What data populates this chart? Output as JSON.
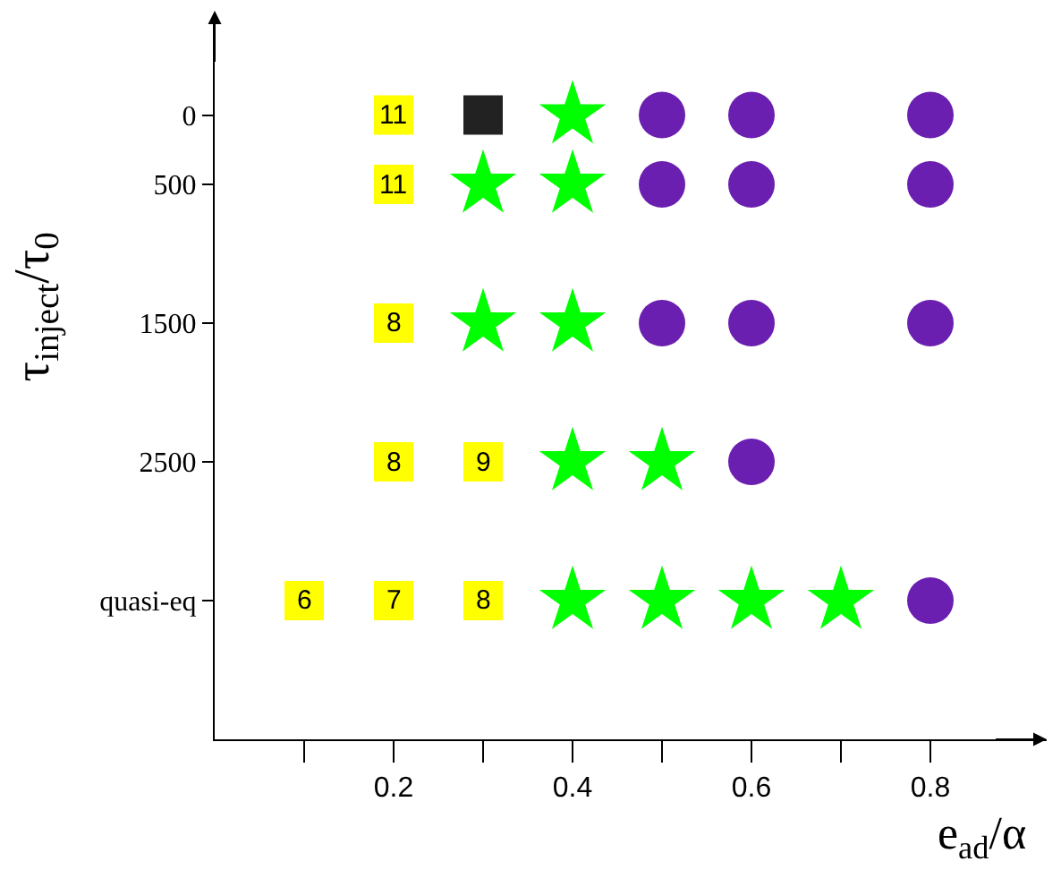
{
  "chart_data": {
    "type": "scatter",
    "xlabel": "e$_{ad}$/α",
    "ylabel": "τ$_{inject}$/τ$_{0}$",
    "xlim": [
      0,
      0.93
    ],
    "ylim": [
      4500,
      -700
    ],
    "xticks": [
      {
        "value": 0.1,
        "label": null
      },
      0.2,
      {
        "value": 0.3,
        "label": null
      },
      0.4,
      {
        "value": 0.5,
        "label": null
      },
      0.6,
      {
        "value": 0.7,
        "label": null
      },
      0.8
    ],
    "yticks": [
      0,
      500,
      1500,
      2500,
      {
        "value": 3500,
        "label": "quasi-eq"
      }
    ],
    "grid": false,
    "annotations": [
      {
        "text": "11",
        "x": 0.2,
        "y": 0
      },
      {
        "text": "11",
        "x": 0.2,
        "y": 500
      },
      {
        "text": "8",
        "x": 0.2,
        "y": 1500
      },
      {
        "text": "8",
        "x": 0.2,
        "y": 2500
      },
      {
        "text": "9",
        "x": 0.3,
        "y": 2500
      },
      {
        "text": "6",
        "x": 0.1,
        "y": 3500
      },
      {
        "text": "7",
        "x": 0.2,
        "y": 3500
      },
      {
        "text": "8",
        "x": 0.3,
        "y": 3500
      }
    ],
    "series": [
      {
        "color": "#ffff00",
        "marker": "square",
        "x": [
          0.2,
          0.2,
          0.2,
          0.2,
          0.3,
          0.1,
          0.2,
          0.3
        ],
        "values": [
          0,
          500,
          1500,
          2500,
          2500,
          3500,
          3500,
          3500
        ]
      },
      {
        "color": "#222222",
        "marker": "square",
        "x": [
          0.3
        ],
        "values": [
          0
        ]
      },
      {
        "color": "#00ff00",
        "marker": "star",
        "x": [
          0.4,
          0.3,
          0.4,
          0.3,
          0.4,
          0.4,
          0.5,
          0.4,
          0.5,
          0.6,
          0.7
        ],
        "values": [
          0,
          500,
          500,
          1500,
          1500,
          2500,
          2500,
          3500,
          3500,
          3500,
          3500
        ]
      },
      {
        "color": "#6a1fb0",
        "marker": "circle",
        "x": [
          0.5,
          0.6,
          0.8,
          0.5,
          0.6,
          0.8,
          0.5,
          0.6,
          0.8,
          0.6,
          0.8
        ],
        "values": [
          0,
          0,
          0,
          500,
          500,
          500,
          1500,
          1500,
          1500,
          2500,
          3500
        ]
      }
    ]
  }
}
